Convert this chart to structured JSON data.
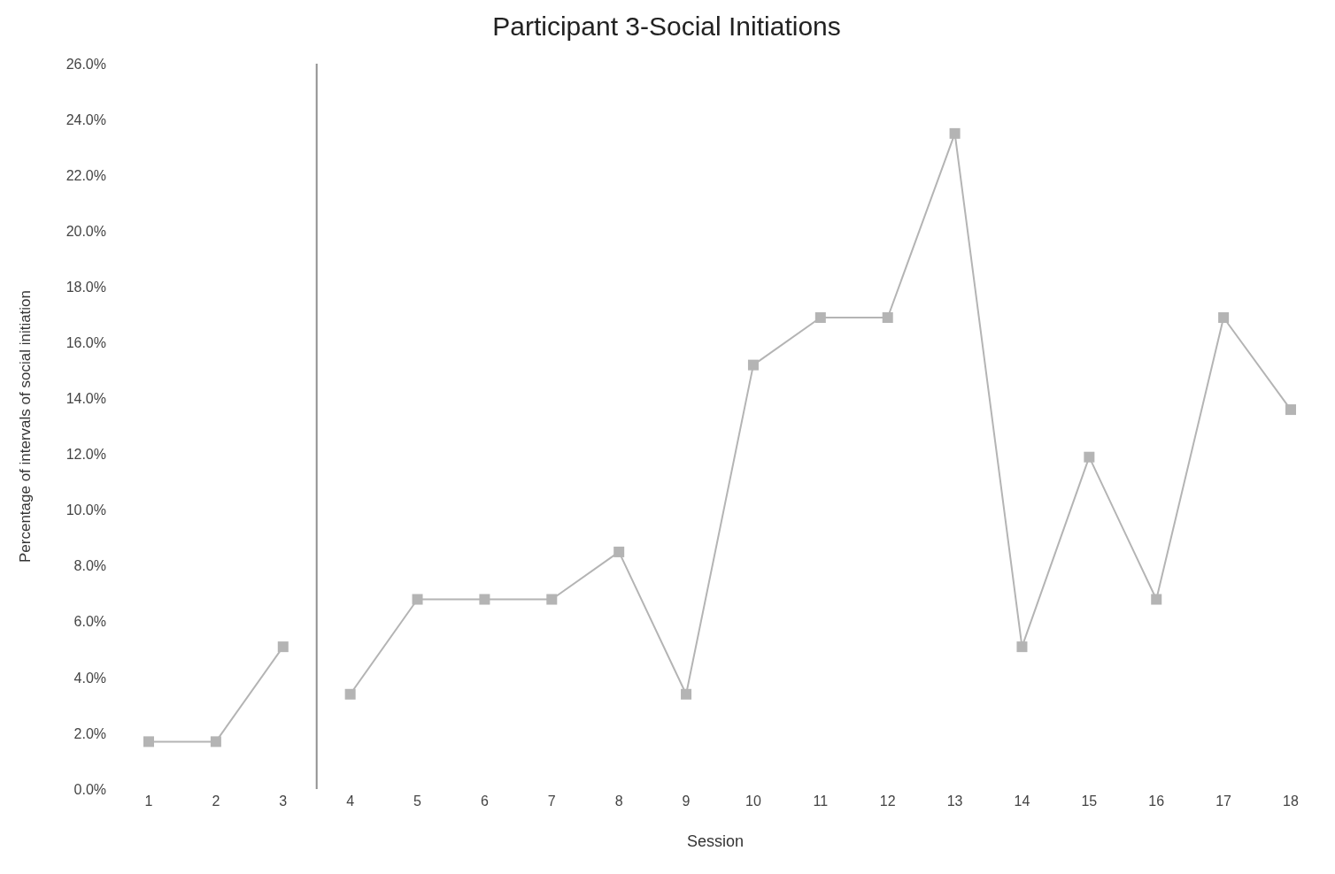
{
  "chart_data": {
    "type": "line",
    "title": "Participant 3-Social Initiations",
    "xlabel": "Session",
    "ylabel": "Percentage of intervals of social initiation",
    "x": [
      1,
      2,
      3,
      4,
      5,
      6,
      7,
      8,
      9,
      10,
      11,
      12,
      13,
      14,
      15,
      16,
      17,
      18
    ],
    "series": [
      {
        "color": "#b4b4b4",
        "values": [
          1.7,
          1.7,
          5.1,
          null,
          null,
          null,
          null,
          null,
          null,
          null,
          null,
          null,
          null,
          null,
          null,
          null,
          null,
          null
        ]
      },
      {
        "color": "#b4b4b4",
        "values": [
          null,
          null,
          null,
          3.4,
          6.8,
          6.8,
          6.8,
          8.5,
          3.4,
          15.2,
          16.9,
          16.9,
          23.5,
          5.1,
          11.9,
          6.8,
          16.9,
          13.6
        ]
      }
    ],
    "xlim": [
      1,
      18
    ],
    "xticks": [
      1,
      2,
      3,
      4,
      5,
      6,
      7,
      8,
      9,
      10,
      11,
      12,
      13,
      14,
      15,
      16,
      17,
      18
    ],
    "ylim": [
      0,
      26
    ],
    "yticks": [
      {
        "value": 0,
        "label": "0.0%"
      },
      {
        "value": 2,
        "label": "2.0%"
      },
      {
        "value": 4,
        "label": "4.0%"
      },
      {
        "value": 6,
        "label": "6.0%"
      },
      {
        "value": 8,
        "label": "8.0%"
      },
      {
        "value": 10,
        "label": "10.0%"
      },
      {
        "value": 12,
        "label": "12.0%"
      },
      {
        "value": 14,
        "label": "14.0%"
      },
      {
        "value": 16,
        "label": "16.0%"
      },
      {
        "value": 18,
        "label": "18.0%"
      },
      {
        "value": 20,
        "label": "20.0%"
      },
      {
        "value": 22,
        "label": "22.0%"
      },
      {
        "value": 24,
        "label": "24.0%"
      },
      {
        "value": 26,
        "label": "26.0%"
      }
    ],
    "marker": "square",
    "ref_lines": [
      {
        "axis": "x",
        "value": 3.5,
        "color": "#909090"
      }
    ]
  }
}
